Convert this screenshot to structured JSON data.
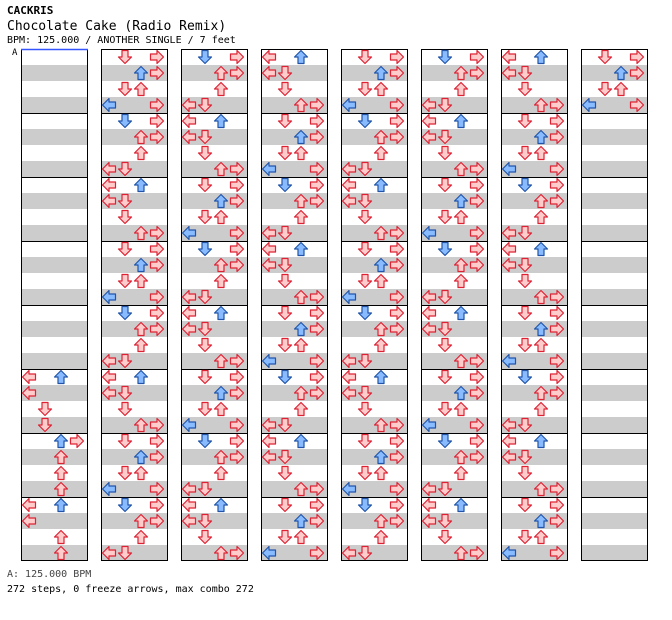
{
  "header": {
    "artist": "CACKRIS",
    "title": "Chocolate Cake (Radio Remix)",
    "meta": "BPM: 125.000 / ANOTHER SINGLE / 7 feet"
  },
  "bpm_marker": "A",
  "footer": {
    "bpm_line": "A: 125.000 BPM",
    "stats_line": "272 steps, 0 freeze arrows, max combo 272"
  },
  "colors": {
    "stripe": "#cccccc",
    "border": "#000000",
    "bpm_marker_line": "#3355ff",
    "arrow_red_fill": "#ffcccc",
    "arrow_red_stroke": "#dd2233",
    "arrow_blue_fill": "#88bbff",
    "arrow_blue_stroke": "#2255aa"
  },
  "chart_data": {
    "type": "step-chart",
    "lanes": [
      "left",
      "down",
      "up",
      "right"
    ],
    "columns": 8,
    "measures_per_column": 8,
    "divisions_per_measure": 4,
    "arrows_in_column_1": [
      [
        6,
        0,
        "L",
        "r"
      ],
      [
        6,
        0,
        "U",
        "b"
      ],
      [
        6,
        1,
        "L",
        "r"
      ],
      [
        6,
        2,
        "D",
        "r"
      ],
      [
        6,
        3,
        "D",
        "r"
      ],
      [
        7,
        0,
        "U",
        "b"
      ],
      [
        7,
        0,
        "R",
        "r"
      ],
      [
        7,
        1,
        "U",
        "r"
      ],
      [
        7,
        2,
        "U",
        "r"
      ],
      [
        7,
        3,
        "U",
        "r"
      ],
      [
        8,
        0,
        "L",
        "r"
      ],
      [
        8,
        0,
        "U",
        "b"
      ],
      [
        8,
        1,
        "L",
        "r"
      ],
      [
        8,
        2,
        "U",
        "r"
      ],
      [
        8,
        3,
        "U",
        "r"
      ]
    ]
  }
}
